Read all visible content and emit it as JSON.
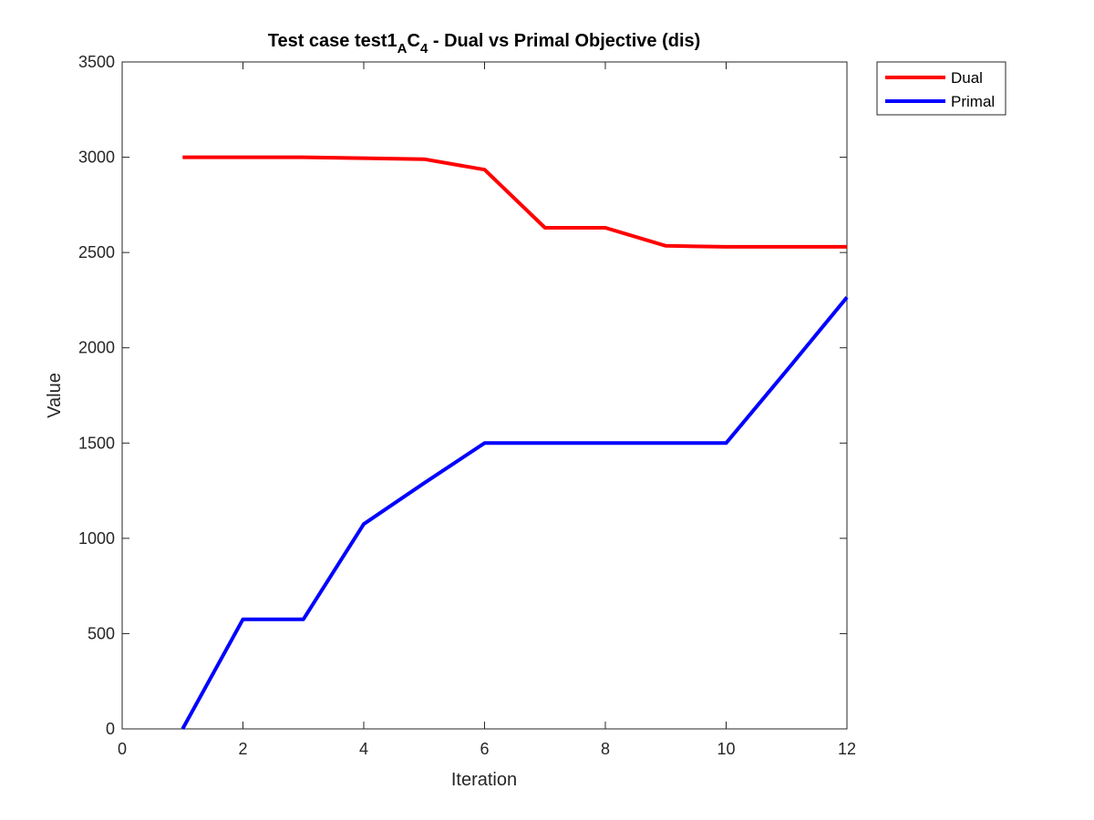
{
  "chart_data": {
    "type": "line",
    "title": {
      "before": "Test case test1",
      "sub1": "A",
      "mid": "C",
      "sub2": "4",
      "after": " - Dual vs Primal Objective (dis)"
    },
    "xlabel": "Iteration",
    "ylabel": "Value",
    "xlim": [
      0,
      12
    ],
    "ylim": [
      0,
      3500
    ],
    "xticks": [
      0,
      2,
      4,
      6,
      8,
      10,
      12
    ],
    "yticks": [
      0,
      500,
      1000,
      1500,
      2000,
      2500,
      3000,
      3500
    ],
    "grid": false,
    "legend_position": "outside-top-right",
    "x": [
      1,
      2,
      3,
      4,
      5,
      6,
      7,
      8,
      9,
      10,
      11,
      12
    ],
    "series": [
      {
        "name": "Dual",
        "color": "#ff0000",
        "values": [
          3000,
          3000,
          3000,
          2995,
          2990,
          2935,
          2630,
          2630,
          2535,
          2530,
          2530,
          2530
        ]
      },
      {
        "name": "Primal",
        "color": "#0000ff",
        "values": [
          0,
          575,
          575,
          1075,
          1290,
          1500,
          1500,
          1500,
          1500,
          1500,
          1880,
          2265
        ]
      }
    ]
  }
}
